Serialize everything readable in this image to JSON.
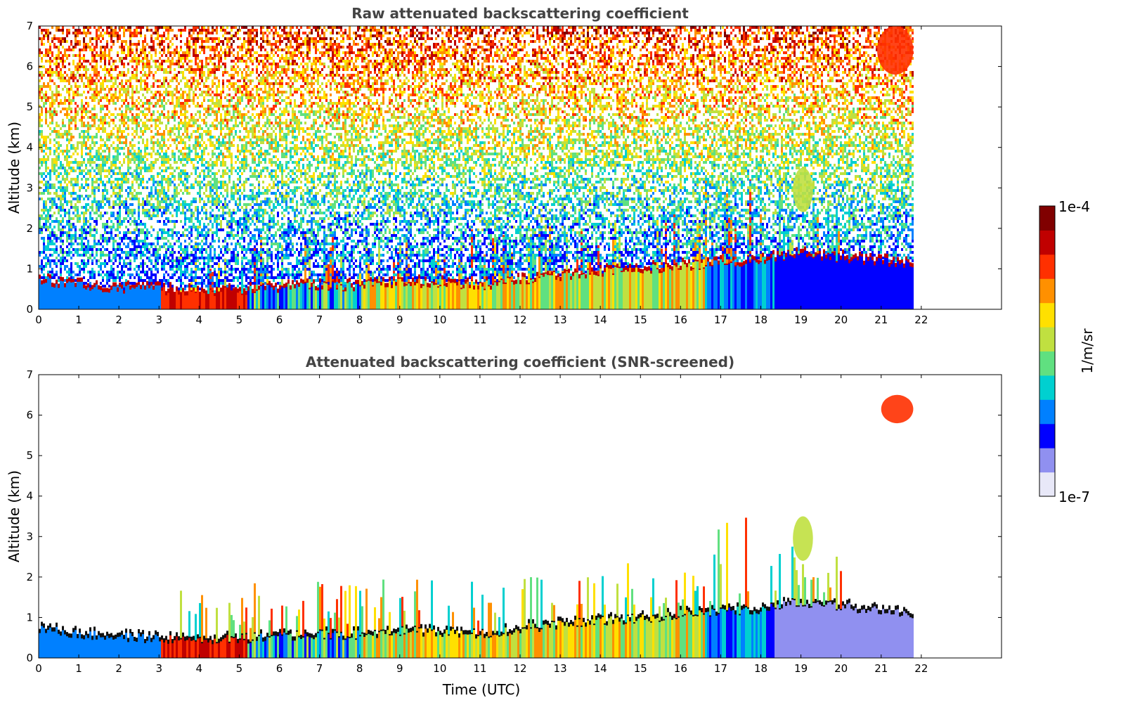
{
  "chart_data": [
    {
      "type": "heatmap",
      "title": "Raw attenuated backscattering coefficient",
      "xlabel": "",
      "ylabel": "Altitude (km)",
      "xlim": [
        0,
        24
      ],
      "ylim": [
        0,
        7
      ],
      "x_ticks": [
        "0",
        "1",
        "2",
        "3",
        "4",
        "5",
        "6",
        "7",
        "8",
        "9",
        "10",
        "11",
        "12",
        "13",
        "14",
        "15",
        "16",
        "17",
        "18",
        "19",
        "20",
        "21",
        "22"
      ],
      "y_ticks": [
        "0",
        "1",
        "2",
        "3",
        "4",
        "5",
        "6",
        "7"
      ],
      "data_end_time": 21.8,
      "features": [
        {
          "name": "noise field",
          "from_km": 1.0,
          "to_km": 7.0,
          "level": "high noise, increasing with altitude"
        },
        {
          "name": "boundary layer top",
          "times": [
            0,
            1,
            2,
            3,
            4,
            5,
            6,
            7,
            8,
            9,
            10,
            11,
            12,
            13,
            14,
            15,
            16,
            17,
            18,
            19,
            20,
            21,
            21.8
          ],
          "altitude_km": [
            0.75,
            0.6,
            0.55,
            0.5,
            0.45,
            0.5,
            0.55,
            0.6,
            0.6,
            0.7,
            0.65,
            0.6,
            0.75,
            0.85,
            0.95,
            1.0,
            1.1,
            1.15,
            1.25,
            1.4,
            1.3,
            1.2,
            1.1
          ]
        },
        {
          "name": "upper cloud",
          "time_range": [
            20.9,
            21.8
          ],
          "altitude_km": [
            5.8,
            7.0
          ]
        },
        {
          "name": "mid cloud",
          "time_range": [
            18.8,
            19.3
          ],
          "altitude_km": [
            2.4,
            3.5
          ]
        }
      ]
    },
    {
      "type": "heatmap",
      "title": "Attenuated backscattering coefficient (SNR-screened)",
      "xlabel": "Time (UTC)",
      "ylabel": "Altitude (km)",
      "xlim": [
        0,
        24
      ],
      "ylim": [
        0,
        7
      ],
      "x_ticks": [
        "0",
        "1",
        "2",
        "3",
        "4",
        "5",
        "6",
        "7",
        "8",
        "9",
        "10",
        "11",
        "12",
        "13",
        "14",
        "15",
        "16",
        "17",
        "18",
        "19",
        "20",
        "21",
        "22"
      ],
      "y_ticks": [
        "0",
        "1",
        "2",
        "3",
        "4",
        "5",
        "6",
        "7"
      ],
      "data_end_time": 21.8,
      "features": [
        {
          "name": "boundary layer top",
          "times": [
            0,
            1,
            2,
            3,
            4,
            5,
            6,
            7,
            8,
            9,
            10,
            11,
            12,
            13,
            14,
            15,
            16,
            17,
            18,
            19,
            20,
            21,
            21.8
          ],
          "altitude_km": [
            0.75,
            0.6,
            0.55,
            0.5,
            0.45,
            0.5,
            0.55,
            0.6,
            0.6,
            0.7,
            0.65,
            0.6,
            0.75,
            0.85,
            0.95,
            1.0,
            1.1,
            1.15,
            1.25,
            1.4,
            1.3,
            1.2,
            1.1
          ]
        },
        {
          "name": "upper cloud",
          "time_range": [
            21.0,
            21.8
          ],
          "altitude_km": [
            5.8,
            6.5
          ]
        },
        {
          "name": "mid cloud",
          "time_range": [
            18.8,
            19.3
          ],
          "altitude_km": [
            2.4,
            3.5
          ]
        }
      ]
    }
  ],
  "colorbar": {
    "label": "1/m/sr",
    "max_label": "1e-4",
    "min_label": "1e-7",
    "colors": [
      "#e8e8f8",
      "#9090f0",
      "#0000ff",
      "#0080ff",
      "#00d0d0",
      "#60e080",
      "#c0e040",
      "#ffe000",
      "#ff9000",
      "#ff3000",
      "#c00000",
      "#800000"
    ]
  }
}
